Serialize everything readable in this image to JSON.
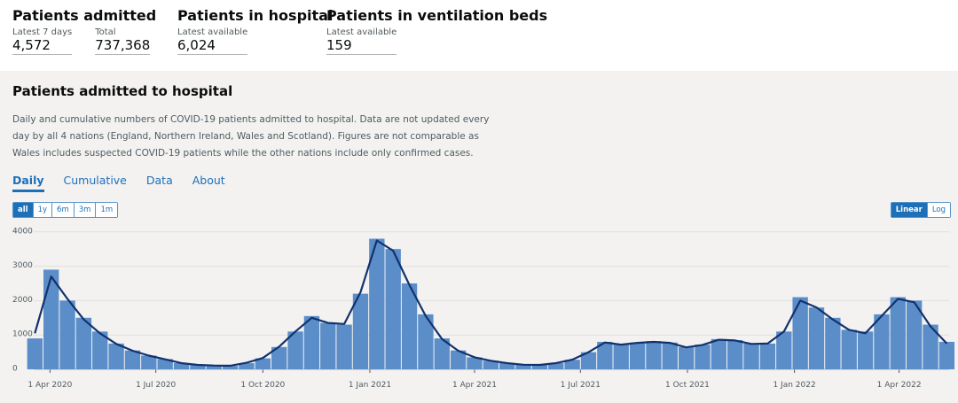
{
  "stats": [
    {
      "title": "Patients admitted",
      "cells": [
        {
          "label": "Latest 7 days",
          "value": "4,572"
        },
        {
          "label": "Total",
          "value": "737,368"
        }
      ]
    },
    {
      "title": "Patients in hospital",
      "cells": [
        {
          "label": "Latest available",
          "value": "6,024"
        }
      ]
    },
    {
      "title": "Patients in ventilation beds",
      "cells": [
        {
          "label": "Latest available",
          "value": "159"
        }
      ]
    }
  ],
  "panel": {
    "title": "Patients admitted to hospital",
    "description": "Daily and cumulative numbers of COVID-19 patients admitted to hospital. Data are not updated every day by all 4 nations (England, Northern Ireland, Wales and Scotland). Figures are not comparable as Wales includes suspected COVID-19 patients while the other nations include only confirmed cases.",
    "tabs": [
      "Daily",
      "Cumulative",
      "Data",
      "About"
    ],
    "ranges": [
      "all",
      "1y",
      "6m",
      "3m",
      "1m"
    ],
    "scales": [
      "Linear",
      "Log"
    ]
  },
  "chart_data": {
    "type": "bar",
    "x": [
      "2020-03-19",
      "2020-04-02",
      "2020-04-16",
      "2020-04-30",
      "2020-05-14",
      "2020-05-28",
      "2020-06-11",
      "2020-06-25",
      "2020-07-09",
      "2020-07-23",
      "2020-08-06",
      "2020-08-20",
      "2020-09-03",
      "2020-09-17",
      "2020-10-01",
      "2020-10-15",
      "2020-10-29",
      "2020-11-12",
      "2020-11-26",
      "2020-12-10",
      "2020-12-24",
      "2021-01-07",
      "2021-01-21",
      "2021-02-04",
      "2021-02-18",
      "2021-03-04",
      "2021-03-18",
      "2021-04-01",
      "2021-04-15",
      "2021-04-29",
      "2021-05-13",
      "2021-05-27",
      "2021-06-10",
      "2021-06-24",
      "2021-07-08",
      "2021-07-22",
      "2021-08-05",
      "2021-08-19",
      "2021-09-02",
      "2021-09-16",
      "2021-09-30",
      "2021-10-14",
      "2021-10-28",
      "2021-11-11",
      "2021-11-25",
      "2021-12-09",
      "2021-12-23",
      "2022-01-06",
      "2022-01-20",
      "2022-02-03",
      "2022-02-17",
      "2022-03-03",
      "2022-03-17",
      "2022-03-31",
      "2022-04-14",
      "2022-04-28",
      "2022-05-12"
    ],
    "series": [
      {
        "type": "bar",
        "color": "#5b8ec9",
        "values": [
          900,
          2900,
          2000,
          1500,
          1100,
          750,
          550,
          400,
          300,
          180,
          130,
          110,
          100,
          180,
          320,
          650,
          1100,
          1550,
          1350,
          1300,
          2200,
          3800,
          3500,
          2500,
          1600,
          900,
          550,
          350,
          250,
          180,
          130,
          130,
          180,
          280,
          500,
          800,
          720,
          780,
          820,
          780,
          650,
          720,
          880,
          850,
          750,
          750,
          1100,
          2100,
          1800,
          1500,
          1150,
          1100,
          1600,
          2100,
          2000,
          1300,
          800
        ]
      },
      {
        "type": "line",
        "color": "#12326e",
        "values": [
          1050,
          2700,
          2050,
          1450,
          1050,
          740,
          540,
          400,
          290,
          180,
          130,
          110,
          105,
          190,
          330,
          660,
          1100,
          1500,
          1350,
          1320,
          2250,
          3750,
          3450,
          2450,
          1550,
          880,
          540,
          350,
          250,
          180,
          135,
          130,
          180,
          280,
          500,
          780,
          720,
          770,
          800,
          770,
          640,
          710,
          860,
          840,
          740,
          750,
          1100,
          2000,
          1800,
          1450,
          1150,
          1050,
          1550,
          2050,
          1950,
          1250,
          750
        ]
      }
    ],
    "xlim": [
      "2020-03-18",
      "2022-05-14"
    ],
    "xticks": [
      {
        "value": "2020-04-01",
        "label": "1 Apr 2020"
      },
      {
        "value": "2020-07-01",
        "label": "1 Jul 2020"
      },
      {
        "value": "2020-10-01",
        "label": "1 Oct 2020"
      },
      {
        "value": "2021-01-01",
        "label": "1 Jan 2021"
      },
      {
        "value": "2021-04-01",
        "label": "1 Apr 2021"
      },
      {
        "value": "2021-07-01",
        "label": "1 Jul 2021"
      },
      {
        "value": "2021-10-01",
        "label": "1 Oct 2021"
      },
      {
        "value": "2022-01-01",
        "label": "1 Jan 2022"
      },
      {
        "value": "2022-04-01",
        "label": "1 Apr 2022"
      }
    ],
    "ylim": [
      0,
      4200
    ],
    "yticks": [
      0,
      1000,
      2000,
      3000,
      4000
    ],
    "grid": true
  }
}
